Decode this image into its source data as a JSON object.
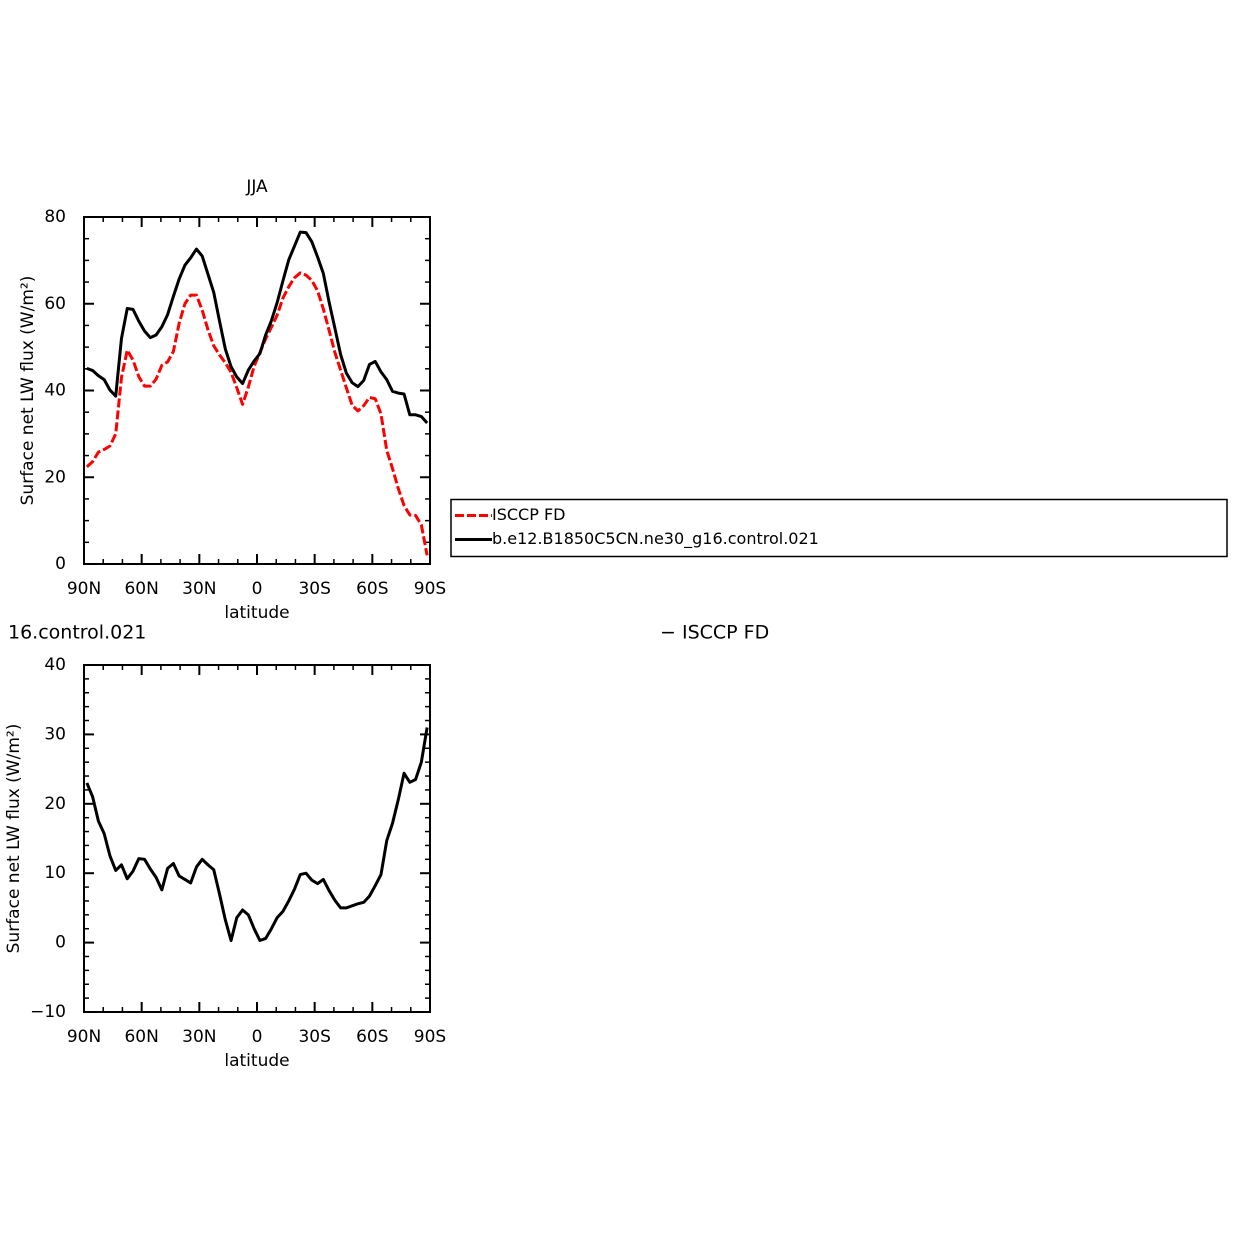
{
  "chart_data": [
    {
      "type": "line",
      "title": "JJA",
      "xlabel": "latitude",
      "ylabel": "Surface net LW flux (W/m²)",
      "x": [
        88.5,
        85.5,
        82.5,
        79.5,
        76.5,
        73.5,
        70.5,
        67.5,
        64.5,
        61.5,
        58.5,
        55.5,
        52.5,
        49.5,
        46.5,
        43.5,
        40.5,
        37.5,
        34.5,
        31.5,
        28.5,
        25.5,
        22.5,
        19.5,
        16.5,
        13.5,
        10.5,
        7.5,
        4.5,
        1.5,
        -1.5,
        -4.5,
        -7.5,
        -10.5,
        -13.5,
        -16.5,
        -19.5,
        -22.5,
        -25.5,
        -28.5,
        -31.5,
        -34.5,
        -37.5,
        -40.5,
        -43.5,
        -46.5,
        -49.5,
        -52.5,
        -55.5,
        -58.5,
        -61.5,
        -64.5,
        -67.5,
        -70.5,
        -73.5,
        -76.5,
        -79.5,
        -82.5,
        -85.5,
        -88.5
      ],
      "series": [
        {
          "name": "ISCCP FD",
          "color": "#ff0000",
          "dashed": true,
          "values": [
            22.4,
            23.6,
            25.8,
            26.4,
            27.2,
            30,
            43,
            49.3,
            47,
            43.2,
            41,
            41,
            42.6,
            45.8,
            46.6,
            49,
            55.5,
            60,
            62,
            62,
            58.5,
            54,
            50.3,
            48.2,
            46.4,
            44.2,
            40.6,
            36.8,
            40.8,
            45.6,
            48.7,
            51.9,
            54.6,
            57.4,
            61.3,
            63.9,
            66,
            67.1,
            66.6,
            65.4,
            63,
            58.8,
            53.9,
            48.8,
            44.7,
            40.6,
            36.6,
            35.3,
            36.5,
            38.4,
            38.1,
            34.6,
            26.2,
            22,
            17.4,
            13.5,
            11.3,
            11.2,
            9,
            2
          ]
        },
        {
          "name": "b.e12.B1850C5CN.ne30_g16.control.021",
          "color": "#000000",
          "dashed": false,
          "values": [
            45.1,
            44.6,
            43.4,
            42.5,
            40.1,
            38.7,
            52,
            58.9,
            58.7,
            56,
            53.7,
            52.2,
            52.8,
            54.7,
            57.5,
            61.7,
            65.7,
            68.9,
            70.6,
            72.6,
            71,
            66.8,
            62.6,
            56,
            49.6,
            45.5,
            43.1,
            41.6,
            44.7,
            46.8,
            48.5,
            52.8,
            56.1,
            60.3,
            65.3,
            70.1,
            73.3,
            76.5,
            76.4,
            74.3,
            70.8,
            67,
            60.4,
            54.4,
            48.3,
            44,
            41.8,
            40.9,
            42.3,
            46,
            46.7,
            44.3,
            42.5,
            39.8,
            39.4,
            39.2,
            34.4,
            34.4,
            34,
            32.5
          ]
        }
      ],
      "xlim": [
        90,
        -90
      ],
      "xticks": [
        {
          "value": 90,
          "label": "90N"
        },
        {
          "value": 60,
          "label": "60N"
        },
        {
          "value": 30,
          "label": "30N"
        },
        0,
        {
          "value": -30,
          "label": "30S"
        },
        {
          "value": -60,
          "label": "60S"
        },
        {
          "value": -90,
          "label": "90S"
        }
      ],
      "xminorticks": [
        80,
        70,
        50,
        40,
        20,
        10,
        -10,
        -20,
        -40,
        -50,
        -70,
        -80
      ],
      "ylim": [
        0,
        80
      ],
      "yticks": [
        0,
        20,
        40,
        60,
        80
      ],
      "yminorticks": [
        5,
        10,
        15,
        25,
        30,
        35,
        45,
        50,
        55,
        65,
        70,
        75
      ],
      "legend": "right"
    },
    {
      "type": "line",
      "title_left": "16.control.021",
      "title_right": "− ISCCP FD",
      "xlabel": "latitude",
      "ylabel": "Surface net LW flux (W/m²)",
      "x": [
        88.5,
        85.5,
        82.5,
        79.5,
        76.5,
        73.5,
        70.5,
        67.5,
        64.5,
        61.5,
        58.5,
        55.5,
        52.5,
        49.5,
        46.5,
        43.5,
        40.5,
        37.5,
        34.5,
        31.5,
        28.5,
        25.5,
        22.5,
        19.5,
        16.5,
        13.5,
        10.5,
        7.5,
        4.5,
        1.5,
        -1.5,
        -4.5,
        -7.5,
        -10.5,
        -13.5,
        -16.5,
        -19.5,
        -22.5,
        -25.5,
        -28.5,
        -31.5,
        -34.5,
        -37.5,
        -40.5,
        -43.5,
        -46.5,
        -49.5,
        -52.5,
        -55.5,
        -58.5,
        -61.5,
        -64.5,
        -67.5,
        -70.5,
        -73.5,
        -76.5,
        -79.5,
        -82.5,
        -85.5,
        -88.5
      ],
      "values": [
        23,
        21,
        17.5,
        15.7,
        12.5,
        10.4,
        11.2,
        9.2,
        10.3,
        12.1,
        12,
        10.6,
        9.4,
        7.6,
        10.7,
        11.4,
        9.6,
        9.1,
        8.6,
        10.9,
        12,
        11.2,
        10.5,
        7,
        3.3,
        0.3,
        3.6,
        4.7,
        4,
        2,
        0.3,
        0.6,
        2,
        3.6,
        4.5,
        6,
        7.7,
        9.8,
        10,
        9,
        8.5,
        9.1,
        7.5,
        6.1,
        5,
        5,
        5.3,
        5.6,
        5.8,
        6.7,
        8.2,
        9.8,
        14.7,
        17.2,
        20.6,
        24.4,
        23.1,
        23.5,
        26,
        31
      ],
      "color": "#000000",
      "xlim": [
        90,
        -90
      ],
      "xticks": [
        {
          "value": 90,
          "label": "90N"
        },
        {
          "value": 60,
          "label": "60N"
        },
        {
          "value": 30,
          "label": "30N"
        },
        0,
        {
          "value": -30,
          "label": "30S"
        },
        {
          "value": -60,
          "label": "60S"
        },
        {
          "value": -90,
          "label": "90S"
        }
      ],
      "xminorticks": [
        80,
        70,
        50,
        40,
        20,
        10,
        -10,
        -20,
        -40,
        -50,
        -70,
        -80
      ],
      "ylim": [
        -10,
        40
      ],
      "yticks": [
        {
          "value": -10,
          "label": "−10"
        },
        0,
        10,
        20,
        30,
        40
      ],
      "yminorticks": [
        -8,
        -6,
        -4,
        -2,
        2,
        4,
        6,
        8,
        12,
        14,
        16,
        18,
        22,
        24,
        26,
        28,
        32,
        34,
        36,
        38
      ]
    }
  ]
}
